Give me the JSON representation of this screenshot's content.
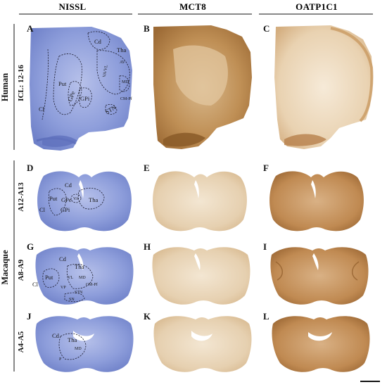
{
  "columns": [
    "NISSL",
    "MCT8",
    "OATP1C1"
  ],
  "species_groups": [
    "Human",
    "Macaque"
  ],
  "row_labels": [
    "ICL: 12-16",
    "A12-A13",
    "A8-A9",
    "A4-A5"
  ],
  "panels": {
    "A": {
      "letter": "A",
      "regions": [
        "Cd",
        "Tha",
        "AV",
        "VA/VL",
        "MD",
        "Put",
        "GPe",
        "GPi",
        "CM-Pf",
        "Cl",
        "STN"
      ]
    },
    "B": {
      "letter": "B"
    },
    "C": {
      "letter": "C"
    },
    "D": {
      "letter": "D",
      "regions": [
        "Cd",
        "Put",
        "GPe",
        "VA",
        "Tha",
        "GPi",
        "Cl"
      ]
    },
    "E": {
      "letter": "E"
    },
    "F": {
      "letter": "F"
    },
    "G": {
      "letter": "G",
      "regions": [
        "Cd",
        "Tha",
        "VL",
        "MD",
        "Put",
        "VP",
        "CM-Pf",
        "STN",
        "SN",
        "Cl"
      ]
    },
    "H": {
      "letter": "H"
    },
    "I": {
      "letter": "I"
    },
    "J": {
      "letter": "J",
      "regions": [
        "Cd",
        "Tha",
        "MD",
        "P"
      ]
    },
    "K": {
      "letter": "K"
    },
    "L": {
      "letter": "L"
    }
  },
  "stain_colors": {
    "nissl": "#7d8fd0",
    "nissl_dark": "#4d5fae",
    "mct8": "#b8864f",
    "mct8_dark": "#8a5a28",
    "oatp": "#c79a64",
    "oatp_dark": "#9c6a35"
  }
}
